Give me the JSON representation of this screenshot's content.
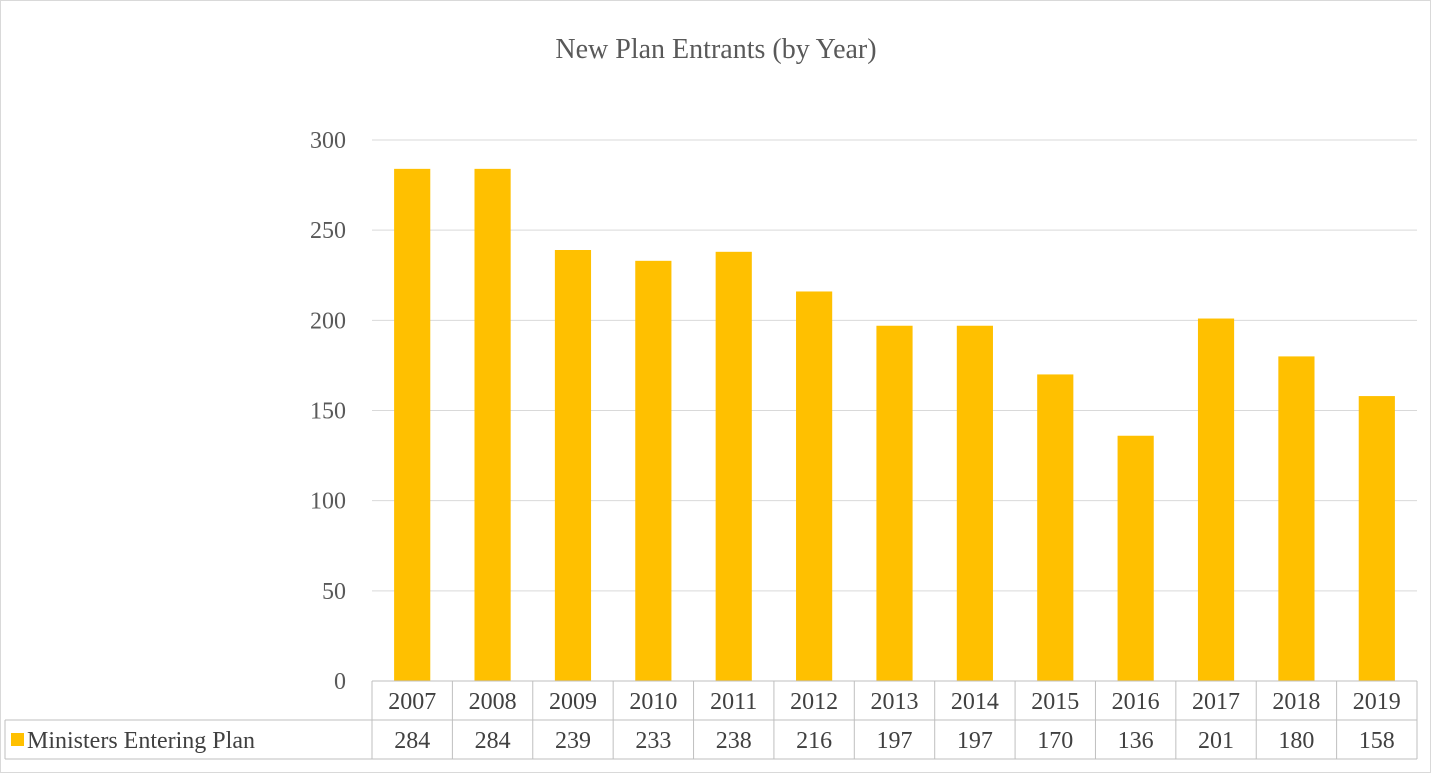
{
  "chart_data": {
    "type": "bar",
    "title": "New Plan Entrants (by Year)",
    "categories": [
      "2007",
      "2008",
      "2009",
      "2010",
      "2011",
      "2012",
      "2013",
      "2014",
      "2015",
      "2016",
      "2017",
      "2018",
      "2019"
    ],
    "series": [
      {
        "name": "Ministers Entering Plan",
        "values": [
          284,
          284,
          239,
          233,
          238,
          216,
          197,
          197,
          170,
          136,
          201,
          180,
          158
        ],
        "color": "#ffc000"
      }
    ],
    "ylim": [
      0,
      300
    ],
    "yticks": [
      0,
      50,
      100,
      150,
      200,
      250,
      300
    ],
    "grid": true,
    "legend": "data-table-left"
  }
}
